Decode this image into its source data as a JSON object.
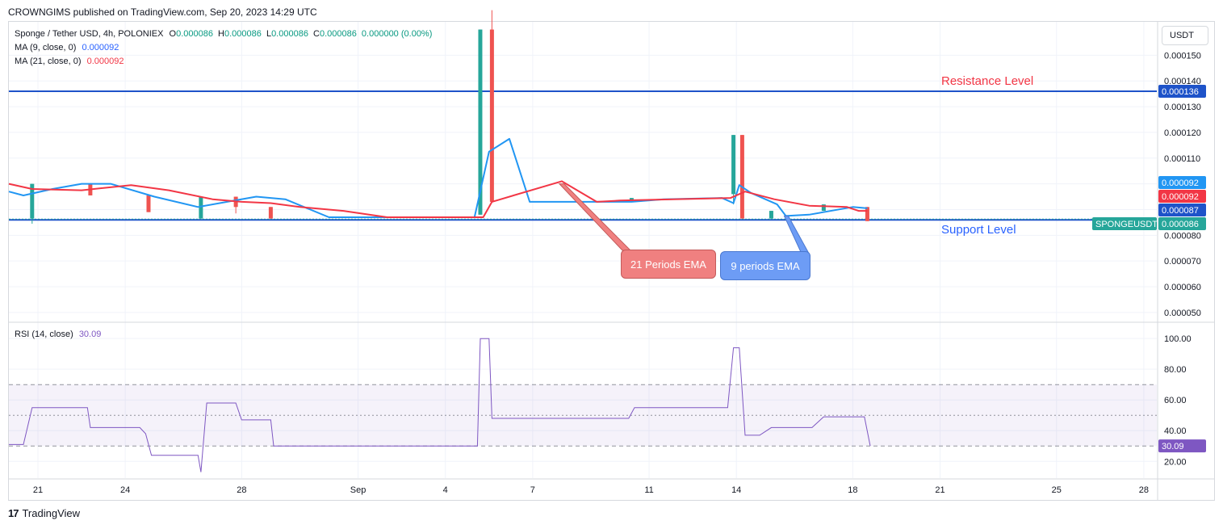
{
  "header": {
    "publisher_text": "CROWNGIMS published on TradingView.com, Sep 20, 2023 14:29 UTC"
  },
  "legend": {
    "symbol": "Sponge / Tether USD, 4h, POLONIEX",
    "ohlc": [
      {
        "label": "O",
        "value": "0.000086"
      },
      {
        "label": "H",
        "value": "0.000086"
      },
      {
        "label": "L",
        "value": "0.000086"
      },
      {
        "label": "C",
        "value": "0.000086"
      }
    ],
    "change": "0.000000 (0.00%)",
    "ma9_label": "MA (9, close, 0)",
    "ma9_value": "0.000092",
    "ma21_label": "MA (21, close, 0)",
    "ma21_value": "0.000092",
    "rsi_label": "RSI (14, close)",
    "rsi_value": "30.09"
  },
  "currency_button": "USDT",
  "annotations": {
    "resistance": "Resistance Level",
    "support": "Support Level",
    "ema21": "21 Periods EMA",
    "ema9": "9 periods EMA"
  },
  "price_tags": {
    "resistance": "0.000136",
    "ma9": "0.000092",
    "ma21": "0.000092",
    "blue": "0.000087",
    "symbol": "SPONGEUSDT",
    "last": "0.000086",
    "rsi": "30.09"
  },
  "footer": {
    "brand": "TradingView"
  },
  "colors": {
    "up": "#26a69a",
    "down": "#ef5350",
    "ma9": "#2196f3",
    "ma21": "#f23645",
    "level": "#1e53c9",
    "rsi": "#7e57c2",
    "grid": "#f0f3fa"
  },
  "chart_data": [
    {
      "type": "candlestick",
      "title": "Sponge / Tether USD, 4h, POLONIEX",
      "x_ticks": [
        "21",
        "24",
        "28",
        "Sep",
        "4",
        "7",
        "11",
        "14",
        "18",
        "21",
        "25",
        "28"
      ],
      "y_ticks": [
        "0.000150",
        "0.000140",
        "0.000130",
        "0.000120",
        "0.000110",
        "0.000080",
        "0.000070",
        "0.000060",
        "0.000050"
      ],
      "ylim": [
        4.65e-05,
        0.000163
      ],
      "levels": [
        {
          "name": "Resistance Level",
          "value": 0.000136
        },
        {
          "name": "Support Level",
          "value": 8.6e-05
        }
      ],
      "candles": [
        {
          "d": 20.8,
          "o": 8.65e-05,
          "c": 0.0001,
          "h": 0.0001,
          "l": 8.45e-05
        },
        {
          "d": 22.8,
          "o": 0.0001,
          "c": 9.55e-05,
          "h": 0.0001,
          "l": 9.55e-05
        },
        {
          "d": 24.8,
          "o": 9.55e-05,
          "c": 8.9e-05,
          "h": 9.55e-05,
          "l": 8.9e-05
        },
        {
          "d": 26.6,
          "o": 8.65e-05,
          "c": 9.5e-05,
          "h": 9.5e-05,
          "l": 8.65e-05
        },
        {
          "d": 27.8,
          "o": 9.5e-05,
          "c": 9.1e-05,
          "h": 9.5e-05,
          "l": 8.85e-05
        },
        {
          "d": 29.0,
          "o": 9.1e-05,
          "c": 8.65e-05,
          "h": 9.1e-05,
          "l": 8.65e-05
        },
        {
          "d": 36.2,
          "o": 8.8e-05,
          "c": 0.00016,
          "h": 0.00016,
          "l": 8.8e-05
        },
        {
          "d": 36.6,
          "o": 0.00016,
          "c": 9.3e-05,
          "h": 0.0001675,
          "l": 9.3e-05
        },
        {
          "d": 41.4,
          "o": 9.3e-05,
          "c": 9.45e-05,
          "h": 9.45e-05,
          "l": 9.3e-05
        },
        {
          "d": 44.9,
          "o": 9.6e-05,
          "c": 0.000119,
          "h": 0.000119,
          "l": 9.2e-05
        },
        {
          "d": 45.2,
          "o": 0.000119,
          "c": 8.65e-05,
          "h": 0.000119,
          "l": 8.65e-05
        },
        {
          "d": 46.2,
          "o": 8.65e-05,
          "c": 8.95e-05,
          "h": 8.95e-05,
          "l": 8.65e-05
        },
        {
          "d": 48.0,
          "o": 8.95e-05,
          "c": 9.2e-05,
          "h": 9.2e-05,
          "l": 8.95e-05
        },
        {
          "d": 49.5,
          "o": 9.1e-05,
          "c": 8.55e-05,
          "h": 9.1e-05,
          "l": 8.55e-05
        }
      ],
      "series": [
        {
          "name": "MA (9, close, 0)",
          "points": [
            [
              20.0,
              9.7e-05
            ],
            [
              20.5,
              9.55e-05
            ],
            [
              21.5,
              9.8e-05
            ],
            [
              22.5,
              0.0001
            ],
            [
              23.5,
              0.0001
            ],
            [
              25.0,
              9.5e-05
            ],
            [
              26.5,
              9.1e-05
            ],
            [
              27.5,
              9.3e-05
            ],
            [
              28.5,
              9.5e-05
            ],
            [
              29.5,
              9.4e-05
            ],
            [
              31.0,
              8.7e-05
            ],
            [
              35.0,
              8.7e-05
            ],
            [
              36.0,
              8.7e-05
            ],
            [
              36.5,
              0.0001125
            ],
            [
              37.2,
              0.0001175
            ],
            [
              37.9,
              9.3e-05
            ],
            [
              41.4,
              9.3e-05
            ],
            [
              42.5,
              9.4e-05
            ],
            [
              44.5,
              9.45e-05
            ],
            [
              44.9,
              9.25e-05
            ],
            [
              45.1,
              9.95e-05
            ],
            [
              45.5,
              9.65e-05
            ],
            [
              46.4,
              9.2e-05
            ],
            [
              46.7,
              8.75e-05
            ],
            [
              47.5,
              8.8e-05
            ],
            [
              49.0,
              9.1e-05
            ],
            [
              49.5,
              9.05e-05
            ]
          ]
        },
        {
          "name": "MA (21, close, 0)",
          "points": [
            [
              20.0,
              0.0001
            ],
            [
              20.8,
              9.8e-05
            ],
            [
              22.5,
              9.75e-05
            ],
            [
              24.2,
              9.95e-05
            ],
            [
              25.5,
              9.75e-05
            ],
            [
              27.0,
              9.4e-05
            ],
            [
              28.0,
              9.3e-05
            ],
            [
              29.0,
              9.25e-05
            ],
            [
              30.0,
              9.1e-05
            ],
            [
              31.5,
              8.95e-05
            ],
            [
              33.0,
              8.7e-05
            ],
            [
              35.0,
              8.7e-05
            ],
            [
              36.3,
              8.7e-05
            ],
            [
              36.6,
              9.3e-05
            ],
            [
              39.0,
              0.000101
            ],
            [
              40.2,
              9.3e-05
            ],
            [
              41.0,
              9.35e-05
            ],
            [
              44.8,
              9.45e-05
            ],
            [
              45.3,
              9.7e-05
            ],
            [
              46.3,
              9.4e-05
            ],
            [
              47.5,
              9.15e-05
            ],
            [
              48.8,
              9.1e-05
            ],
            [
              49.2,
              8.95e-05
            ],
            [
              49.5,
              8.95e-05
            ]
          ]
        }
      ]
    },
    {
      "type": "line",
      "title": "RSI (14, close)",
      "y_ticks": [
        "100.00",
        "80.00",
        "60.00",
        "40.00",
        "20.00"
      ],
      "ylim": [
        9.1,
        110.6
      ],
      "bands": {
        "upper": 70,
        "middle": 50,
        "lower": 30
      },
      "series": [
        {
          "name": "RSI (14, close)",
          "points": [
            [
              20.0,
              31
            ],
            [
              20.5,
              31
            ],
            [
              20.8,
              55
            ],
            [
              22.7,
              55
            ],
            [
              22.8,
              42
            ],
            [
              24.5,
              42
            ],
            [
              24.7,
              38
            ],
            [
              24.9,
              24
            ],
            [
              26.5,
              24
            ],
            [
              26.6,
              13
            ],
            [
              26.8,
              58
            ],
            [
              27.8,
              58
            ],
            [
              28.0,
              47
            ],
            [
              29.0,
              47
            ],
            [
              29.1,
              30
            ],
            [
              36.1,
              30
            ],
            [
              36.2,
              100
            ],
            [
              36.5,
              100
            ],
            [
              36.6,
              48
            ],
            [
              41.3,
              48
            ],
            [
              41.5,
              55
            ],
            [
              44.7,
              55
            ],
            [
              44.9,
              94
            ],
            [
              45.1,
              94
            ],
            [
              45.3,
              37
            ],
            [
              45.8,
              37
            ],
            [
              46.2,
              42
            ],
            [
              47.6,
              42
            ],
            [
              48.0,
              49
            ],
            [
              49.4,
              49
            ],
            [
              49.6,
              30.09
            ]
          ]
        }
      ]
    }
  ]
}
